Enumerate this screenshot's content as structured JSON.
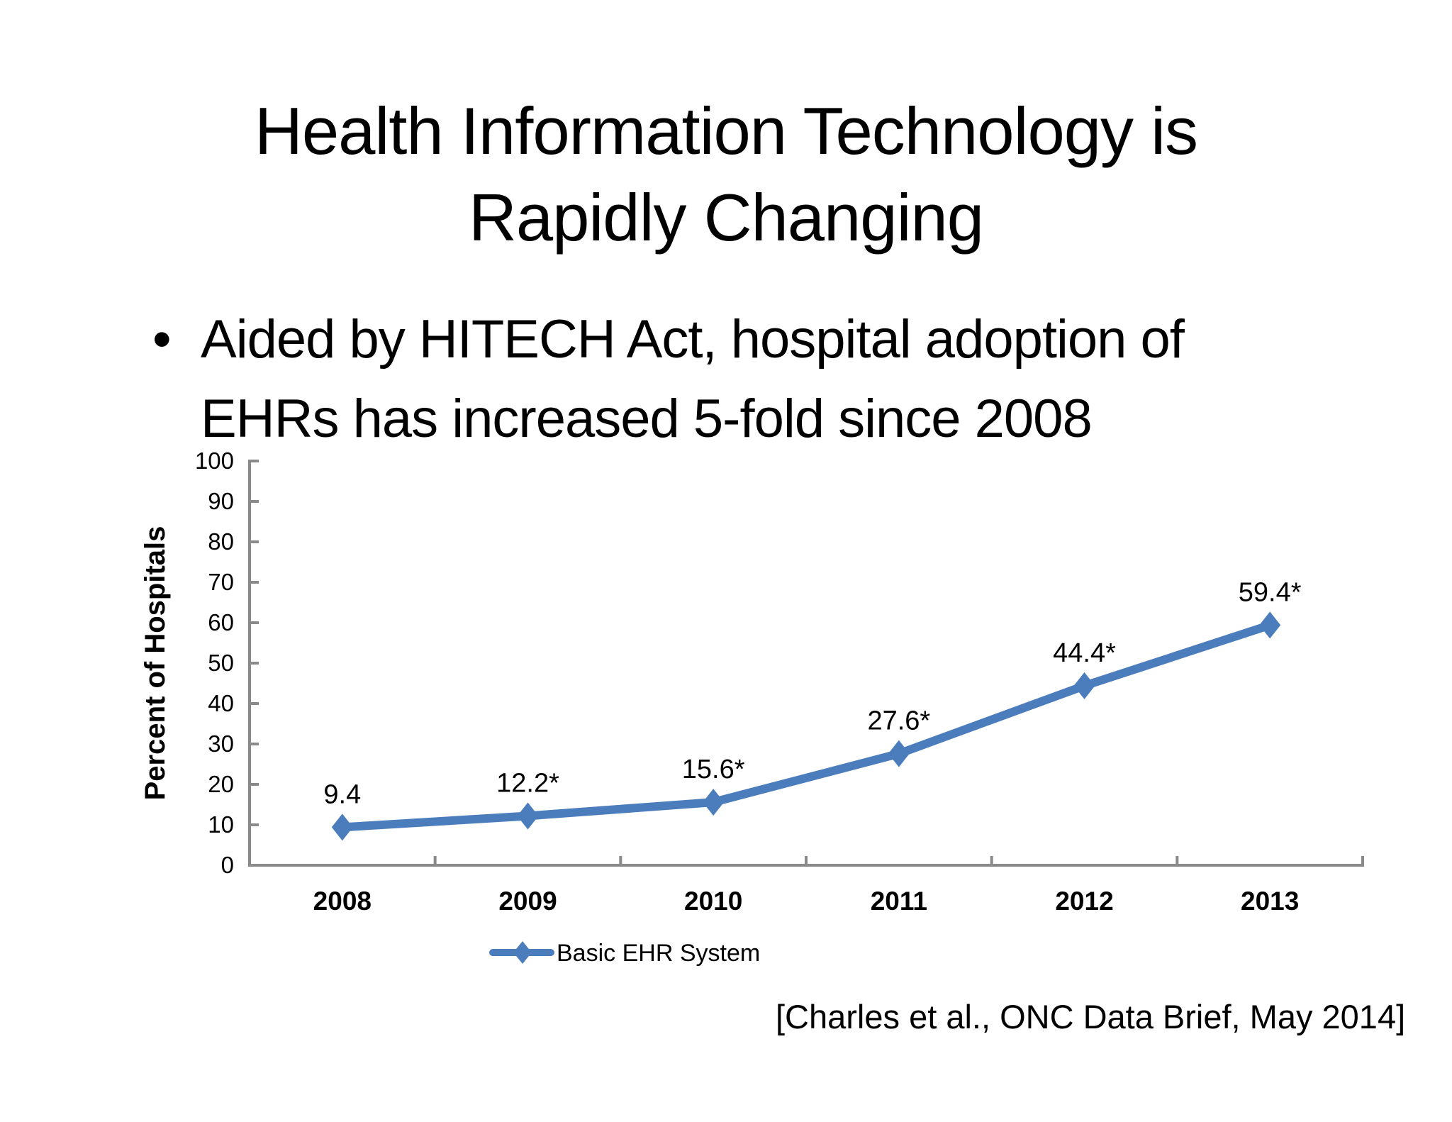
{
  "slide": {
    "title": "Health Information Technology is Rapidly Changing",
    "bullet_char": "•",
    "bullet_text": "Aided by HITECH Act, hospital adoption of EHRs has increased 5-fold since 2008",
    "citation": "[Charles et al., ONC Data Brief, May 2014]"
  },
  "chart_data": {
    "type": "line",
    "categories": [
      "2008",
      "2009",
      "2010",
      "2011",
      "2012",
      "2013"
    ],
    "series": [
      {
        "name": "Basic EHR System",
        "values": [
          9.4,
          12.2,
          15.6,
          27.6,
          44.4,
          59.4
        ],
        "point_labels": [
          "9.4",
          "12.2*",
          "15.6*",
          "27.6*",
          "44.4*",
          "59.4*"
        ],
        "color": "#4b7dbd",
        "marker": "diamond"
      }
    ],
    "title": "",
    "xlabel": "",
    "ylabel": "Percent of Hospitals",
    "ylim": [
      0,
      100
    ],
    "ytick_step": 10,
    "grid": false,
    "legend_position": "bottom",
    "axis_color": "#8a8a8a"
  }
}
